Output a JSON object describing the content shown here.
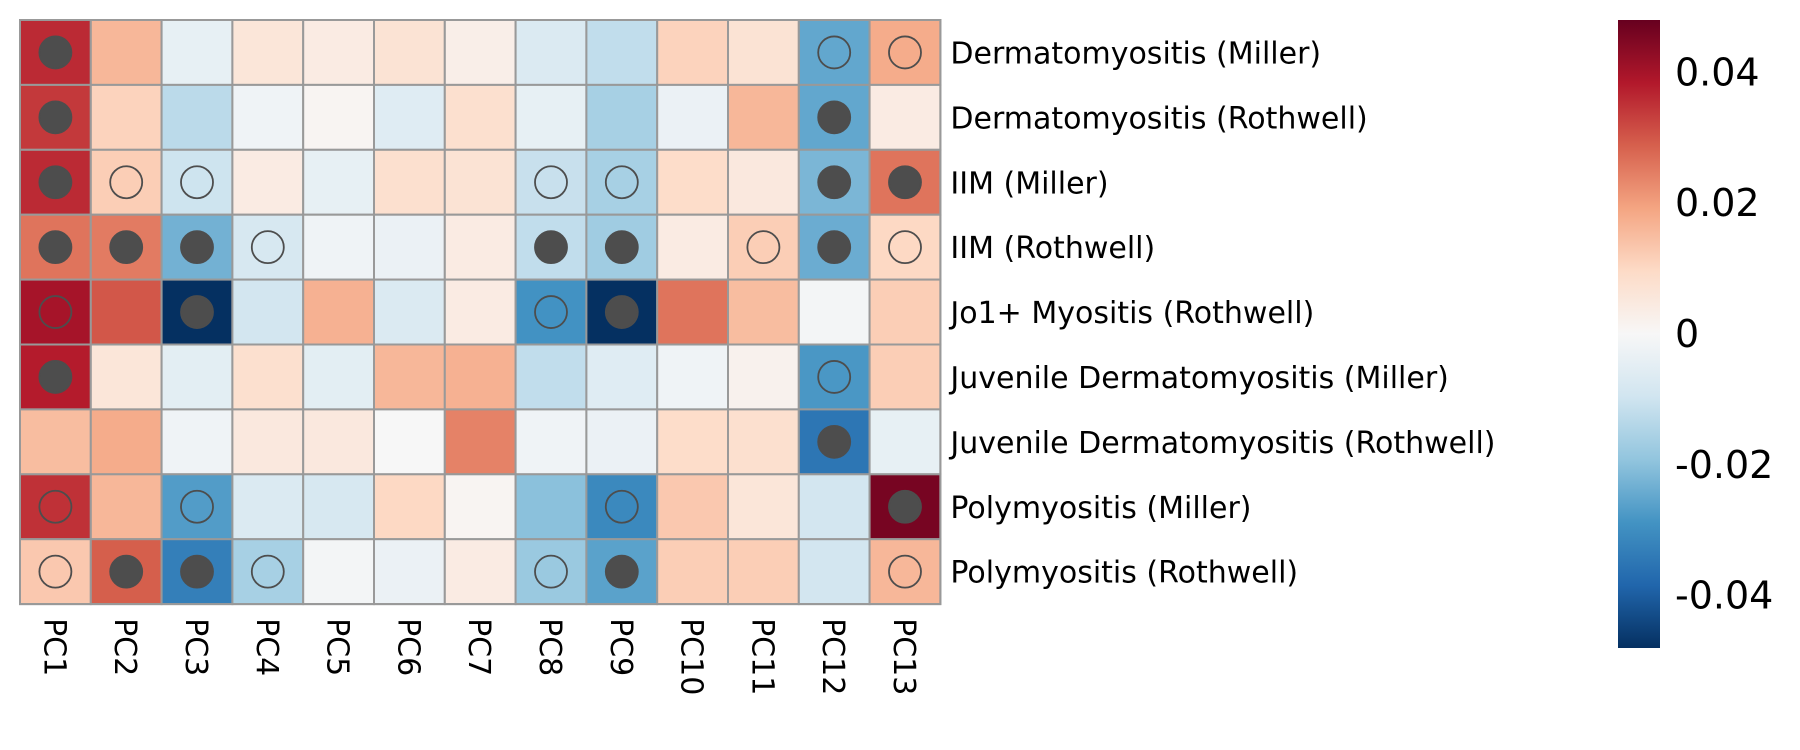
{
  "chart_data": {
    "type": "heatmap",
    "rows": [
      "Dermatomyositis (Miller)",
      "Dermatomyositis (Rothwell)",
      "IIM (Miller)",
      "IIM (Rothwell)",
      "Jo1+ Myositis (Rothwell)",
      "Juvenile Dermatomyositis (Miller)",
      "Juvenile Dermatomyositis (Rothwell)",
      "Polymyositis (Miller)",
      "Polymyositis (Rothwell)"
    ],
    "columns": [
      "PC1",
      "PC2",
      "PC3",
      "PC4",
      "PC5",
      "PC6",
      "PC7",
      "PC8",
      "PC9",
      "PC10",
      "PC11",
      "PC12",
      "PC13"
    ],
    "values": [
      [
        0.036,
        0.016,
        -0.004,
        0.006,
        0.004,
        0.007,
        0.003,
        -0.007,
        -0.012,
        0.011,
        0.007,
        -0.025,
        0.018
      ],
      [
        0.034,
        0.011,
        -0.013,
        -0.002,
        0.001,
        -0.006,
        0.008,
        -0.004,
        -0.016,
        -0.003,
        0.016,
        -0.025,
        0.004
      ],
      [
        0.036,
        0.012,
        -0.01,
        0.004,
        -0.004,
        0.008,
        0.007,
        -0.011,
        -0.016,
        0.009,
        0.005,
        -0.022,
        0.026
      ],
      [
        0.026,
        0.025,
        -0.023,
        -0.008,
        -0.002,
        -0.003,
        0.004,
        -0.012,
        -0.017,
        0.004,
        0.012,
        -0.024,
        0.01
      ],
      [
        0.04,
        0.03,
        -0.048,
        -0.009,
        0.017,
        -0.007,
        0.004,
        -0.029,
        -0.048,
        0.026,
        0.015,
        -0.001,
        0.012
      ],
      [
        0.038,
        0.006,
        -0.005,
        0.008,
        -0.005,
        0.016,
        0.017,
        -0.012,
        -0.006,
        -0.002,
        0.002,
        -0.028,
        0.012
      ],
      [
        0.015,
        0.018,
        -0.002,
        0.005,
        0.005,
        0.0,
        0.024,
        -0.002,
        -0.003,
        0.009,
        0.008,
        -0.035,
        -0.004
      ],
      [
        0.035,
        0.016,
        -0.027,
        -0.007,
        -0.008,
        0.01,
        0.001,
        -0.02,
        -0.031,
        0.013,
        0.006,
        -0.009,
        0.046
      ],
      [
        0.013,
        0.029,
        -0.033,
        -0.016,
        -0.001,
        -0.003,
        0.004,
        -0.018,
        -0.026,
        0.012,
        0.012,
        -0.009,
        0.016
      ]
    ],
    "markers": [
      [
        "filled",
        "none",
        "none",
        "none",
        "none",
        "none",
        "none",
        "none",
        "none",
        "none",
        "none",
        "open",
        "open"
      ],
      [
        "filled",
        "none",
        "none",
        "none",
        "none",
        "none",
        "none",
        "none",
        "none",
        "none",
        "none",
        "filled",
        "none"
      ],
      [
        "filled",
        "open",
        "open",
        "none",
        "none",
        "none",
        "none",
        "open",
        "open",
        "none",
        "none",
        "filled",
        "filled"
      ],
      [
        "filled",
        "filled",
        "filled",
        "open",
        "none",
        "none",
        "none",
        "filled",
        "filled",
        "none",
        "open",
        "filled",
        "open"
      ],
      [
        "open",
        "none",
        "filled",
        "none",
        "none",
        "none",
        "none",
        "open",
        "filled",
        "none",
        "none",
        "none",
        "none"
      ],
      [
        "filled",
        "none",
        "none",
        "none",
        "none",
        "none",
        "none",
        "none",
        "none",
        "none",
        "none",
        "open",
        "none"
      ],
      [
        "none",
        "none",
        "none",
        "none",
        "none",
        "none",
        "none",
        "none",
        "none",
        "none",
        "none",
        "filled",
        "none"
      ],
      [
        "open",
        "none",
        "open",
        "none",
        "none",
        "none",
        "none",
        "none",
        "open",
        "none",
        "none",
        "none",
        "filled"
      ],
      [
        "open",
        "filled",
        "filled",
        "open",
        "none",
        "none",
        "none",
        "open",
        "filled",
        "none",
        "none",
        "none",
        "open"
      ]
    ],
    "colorbar": {
      "range": [
        -0.048,
        0.048
      ],
      "ticks": [
        0.04,
        0.02,
        0,
        -0.02,
        -0.04
      ],
      "tick_labels": [
        "0.04",
        "0.02",
        "0",
        "-0.02",
        "-0.04"
      ],
      "colormap": "RdBu_r",
      "colors": [
        "#053061",
        "#2166ac",
        "#4393c3",
        "#92c5de",
        "#d1e5f0",
        "#f7f7f7",
        "#fddbc7",
        "#f4a582",
        "#d6604d",
        "#b2182b",
        "#67001f"
      ]
    },
    "grid_color": "#999999",
    "marker_color": "#4d4d4d",
    "title": "",
    "xlabel": "",
    "ylabel": ""
  }
}
